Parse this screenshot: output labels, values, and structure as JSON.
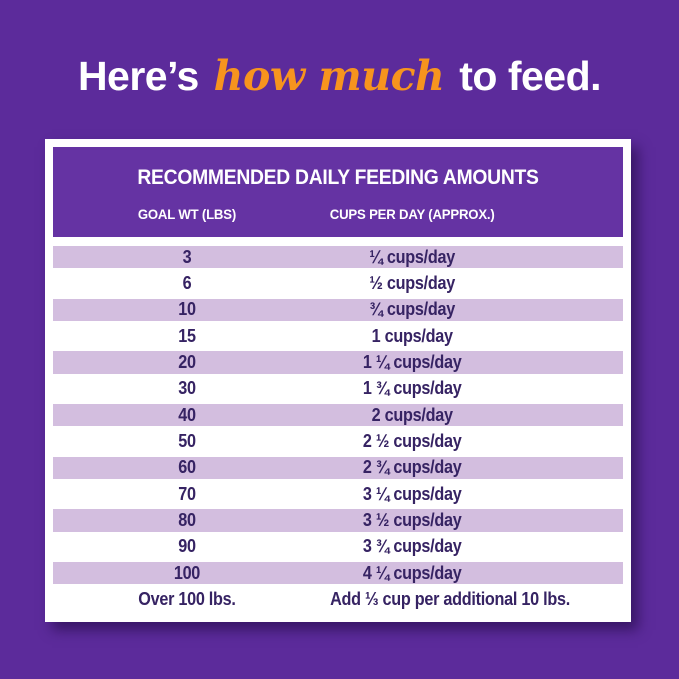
{
  "title": {
    "prefix": "Here’s ",
    "highlight": "how much",
    "suffix": " to feed."
  },
  "table": {
    "heading": "RECOMMENDED DAILY FEEDING AMOUNTS",
    "col1_header": "GOAL WT (LBS)",
    "col2_header": "CUPS PER DAY (APPROX.)",
    "rows": [
      {
        "weight": "3",
        "cups": "¼ cups/day"
      },
      {
        "weight": "6",
        "cups": "½ cups/day"
      },
      {
        "weight": "10",
        "cups": "¾ cups/day"
      },
      {
        "weight": "15",
        "cups": "1 cups/day"
      },
      {
        "weight": "20",
        "cups": "1 ¼ cups/day"
      },
      {
        "weight": "30",
        "cups": "1 ¾ cups/day"
      },
      {
        "weight": "40",
        "cups": "2 cups/day"
      },
      {
        "weight": "50",
        "cups": "2 ½ cups/day"
      },
      {
        "weight": "60",
        "cups": "2 ¾ cups/day"
      },
      {
        "weight": "70",
        "cups": "3 ¼ cups/day"
      },
      {
        "weight": "80",
        "cups": "3 ½ cups/day"
      },
      {
        "weight": "90",
        "cups": "3 ¾ cups/day"
      },
      {
        "weight": "100",
        "cups": "4 ¼ cups/day"
      },
      {
        "weight": "Over 100 lbs.",
        "cups": "Add ⅓ cup per additional 10 lbs."
      }
    ]
  },
  "colors": {
    "background_purple": "#5C2B9B",
    "table_header_purple": "#6533A3",
    "row_lavender": "#D3BEDF",
    "row_text_dark_purple": "#362363",
    "accent_orange": "#F7941E",
    "white": "#FFFFFF"
  },
  "chart_data": {
    "type": "table",
    "title": "RECOMMENDED DAILY FEEDING AMOUNTS",
    "columns": [
      "GOAL WT (LBS)",
      "CUPS PER DAY (APPROX.)"
    ],
    "rows": [
      [
        "3",
        "1/4 cups/day"
      ],
      [
        "6",
        "1/2 cups/day"
      ],
      [
        "10",
        "3/4 cups/day"
      ],
      [
        "15",
        "1 cups/day"
      ],
      [
        "20",
        "1 1/4 cups/day"
      ],
      [
        "30",
        "1 3/4 cups/day"
      ],
      [
        "40",
        "2 cups/day"
      ],
      [
        "50",
        "2 1/2 cups/day"
      ],
      [
        "60",
        "2 3/4 cups/day"
      ],
      [
        "70",
        "3 1/4 cups/day"
      ],
      [
        "80",
        "3 1/2 cups/day"
      ],
      [
        "90",
        "3 3/4 cups/day"
      ],
      [
        "100",
        "4 1/4 cups/day"
      ],
      [
        "Over 100 lbs.",
        "Add 1/3 cup per additional 10 lbs."
      ]
    ],
    "goal_wt_lbs": [
      3,
      6,
      10,
      15,
      20,
      30,
      40,
      50,
      60,
      70,
      80,
      90,
      100
    ],
    "cups_per_day": [
      0.25,
      0.5,
      0.75,
      1,
      1.25,
      1.75,
      2,
      2.5,
      2.75,
      3.25,
      3.5,
      3.75,
      4.25
    ],
    "note": "Add 1/3 cup per additional 10 lbs over 100 lbs."
  }
}
